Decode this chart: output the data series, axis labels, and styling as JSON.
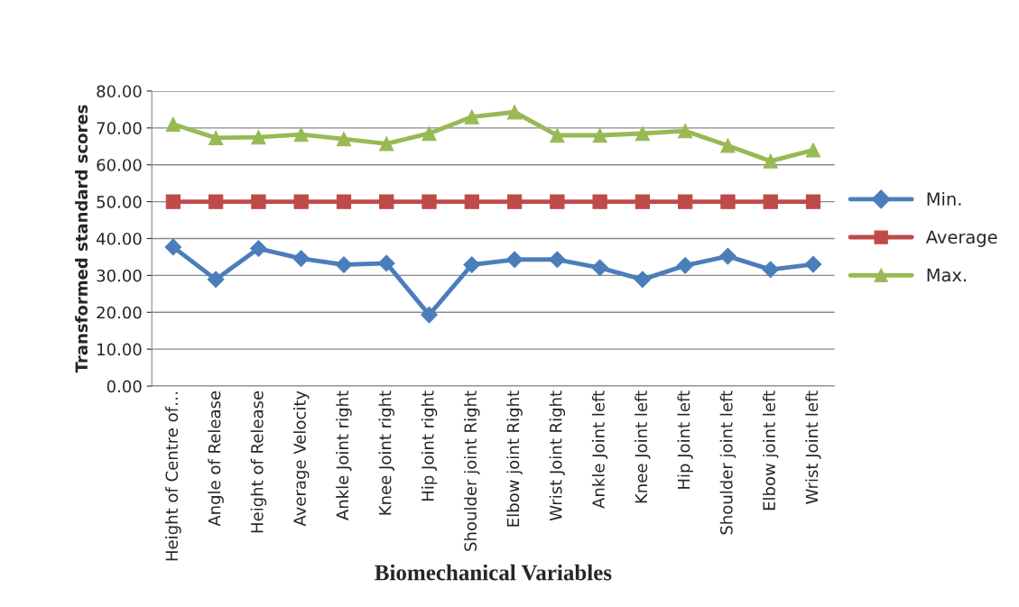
{
  "chart_data": {
    "type": "line",
    "xlabel": "Biomechanical Variables",
    "ylabel": "Transformed standard scores",
    "categories": [
      "Height of Centre of…",
      "Angle of Release",
      "Height of Release",
      "Average Velocity",
      "Ankle Joint right",
      "Knee Joint right",
      "Hip Joint right",
      "Shoulder joint Right",
      "Elbow joint Right",
      "Wrist Joint Right",
      "Ankle Joint left",
      "Knee Joint left",
      "Hip Joint left",
      "Shoulder joint left",
      "Elbow joint left",
      "Wrist Joint left"
    ],
    "series": [
      {
        "name": "Min.",
        "color": "#4a7ebb",
        "marker": "diamond",
        "values": [
          37.7,
          28.9,
          37.3,
          34.6,
          32.9,
          33.3,
          19.3,
          32.9,
          34.3,
          34.3,
          32.1,
          28.9,
          32.7,
          35.2,
          31.6,
          33.0
        ]
      },
      {
        "name": "Average",
        "color": "#be4b48",
        "marker": "square",
        "values": [
          50,
          50,
          50,
          50,
          50,
          50,
          50,
          50,
          50,
          50,
          50,
          50,
          50,
          50,
          50,
          50
        ]
      },
      {
        "name": "Max.",
        "color": "#98b954",
        "marker": "triangle",
        "values": [
          71.0,
          67.3,
          67.5,
          68.2,
          67.0,
          65.7,
          68.5,
          73.0,
          74.3,
          68.0,
          68.0,
          68.5,
          69.2,
          65.2,
          61.0,
          64.0
        ]
      }
    ],
    "ylim": [
      0,
      80
    ],
    "yticks": [
      {
        "value": 0,
        "label": "0.00"
      },
      {
        "value": 10,
        "label": "10.00"
      },
      {
        "value": 20,
        "label": "20.00"
      },
      {
        "value": 30,
        "label": "30.00"
      },
      {
        "value": 40,
        "label": "40.00"
      },
      {
        "value": 50,
        "label": "50.00"
      },
      {
        "value": 60,
        "label": "60.00"
      },
      {
        "value": 70,
        "label": "70.00"
      },
      {
        "value": 80,
        "label": "80.00"
      }
    ],
    "grid": "y",
    "legend": "right"
  }
}
